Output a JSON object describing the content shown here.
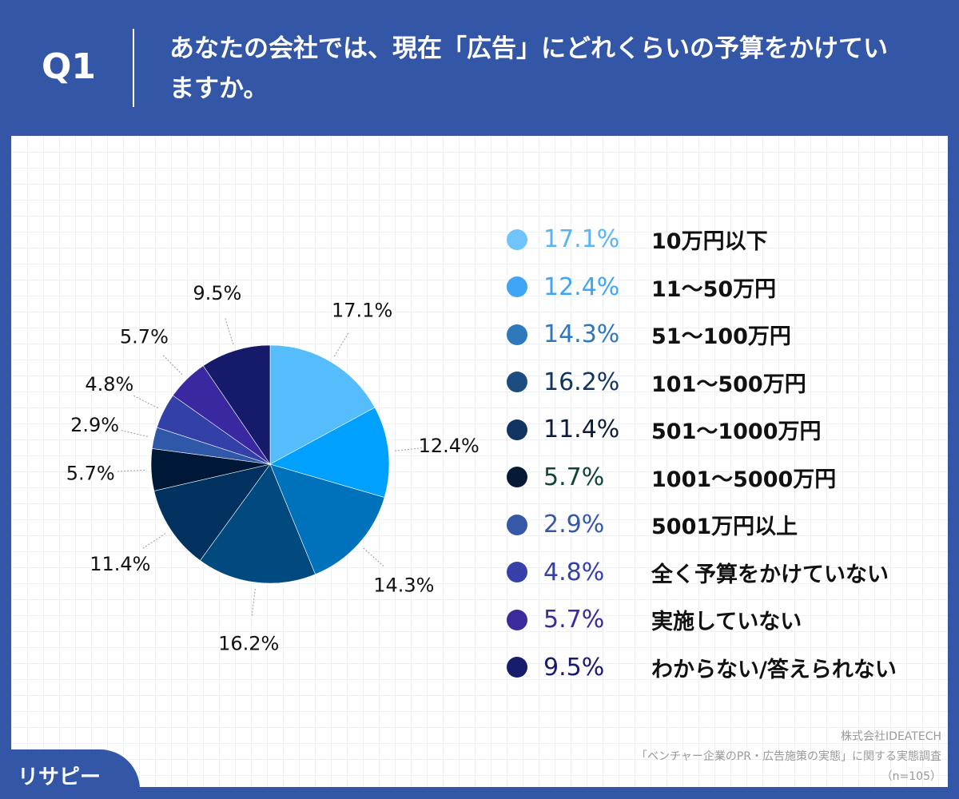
{
  "header": {
    "q": "Q1",
    "title": "あなたの会社では、現在「広告」にどれくらいの予算をかけていますか。"
  },
  "chart_data": {
    "type": "pie",
    "start": "12 o'clock, clockwise",
    "categories": [
      "10万円以下",
      "11～50万円",
      "51～100万円",
      "101～500万円",
      "501～1000万円",
      "1001～5000万円",
      "5001万円以上",
      "全く予算をかけていない",
      "実施していない",
      "わからない/答えられない"
    ],
    "values": [
      17.1,
      12.4,
      14.3,
      16.2,
      11.4,
      5.7,
      2.9,
      4.8,
      5.7,
      9.5
    ],
    "labels": [
      "17.1%",
      "12.4%",
      "14.3%",
      "16.2%",
      "11.4%",
      "5.7%",
      "2.9%",
      "4.8%",
      "5.7%",
      "9.5%"
    ],
    "slice_colors": [
      "#55bdfc",
      "#00a0ff",
      "#0072bb",
      "#004a80",
      "#00315f",
      "#001838",
      "#3058a8",
      "#3240a8",
      "#3a28a0",
      "#161a6a"
    ],
    "legend_colors": [
      "#6ec4fb",
      "#3ea6f5",
      "#2e78bc",
      "#1d4c80",
      "#123462",
      "#061a36",
      "#3558a8",
      "#3540a8",
      "#3a2a9c",
      "#171c6c"
    ],
    "pct_text_colors": [
      "#5ab4f4",
      "#3ea6f5",
      "#2e78bc",
      "#123462",
      "#0c1d3a",
      "#12443a",
      "#3558a8",
      "#3540a8",
      "#3a2a9c",
      "#171c6c"
    ],
    "legend_placement": "right"
  },
  "source": {
    "line1": "株式会社IDEATECH",
    "line2": "「ベンチャー企業のPR・広告施策の実態」に関する実態調査",
    "line3": "（n=105）"
  },
  "logo": "リサピー"
}
